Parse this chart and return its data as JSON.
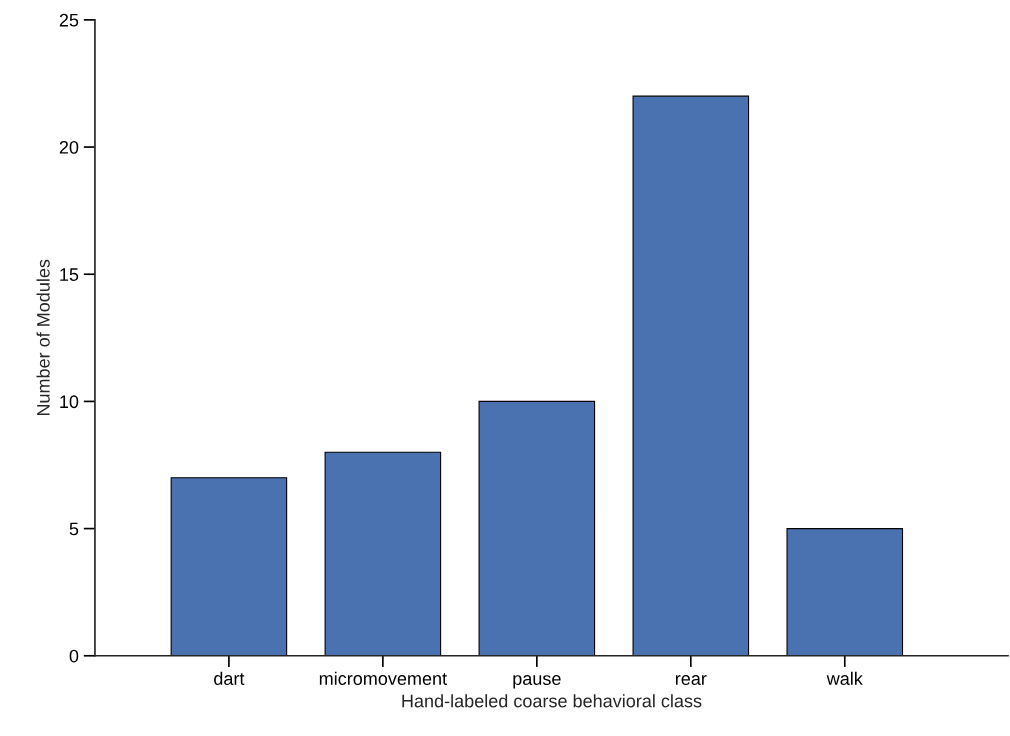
{
  "chart_data": {
    "type": "bar",
    "xlabel": "Hand-labeled coarse behavioral class",
    "ylabel": "Number of Modules",
    "categories": [
      "dart",
      "micromovement",
      "pause",
      "rear",
      "walk"
    ],
    "values": [
      7,
      8,
      10,
      22,
      5
    ],
    "color": "#4a72b0",
    "ylim": [
      0,
      25
    ],
    "yticks": [
      0,
      5,
      10,
      15,
      20,
      25
    ],
    "grid": false,
    "legend": false
  }
}
